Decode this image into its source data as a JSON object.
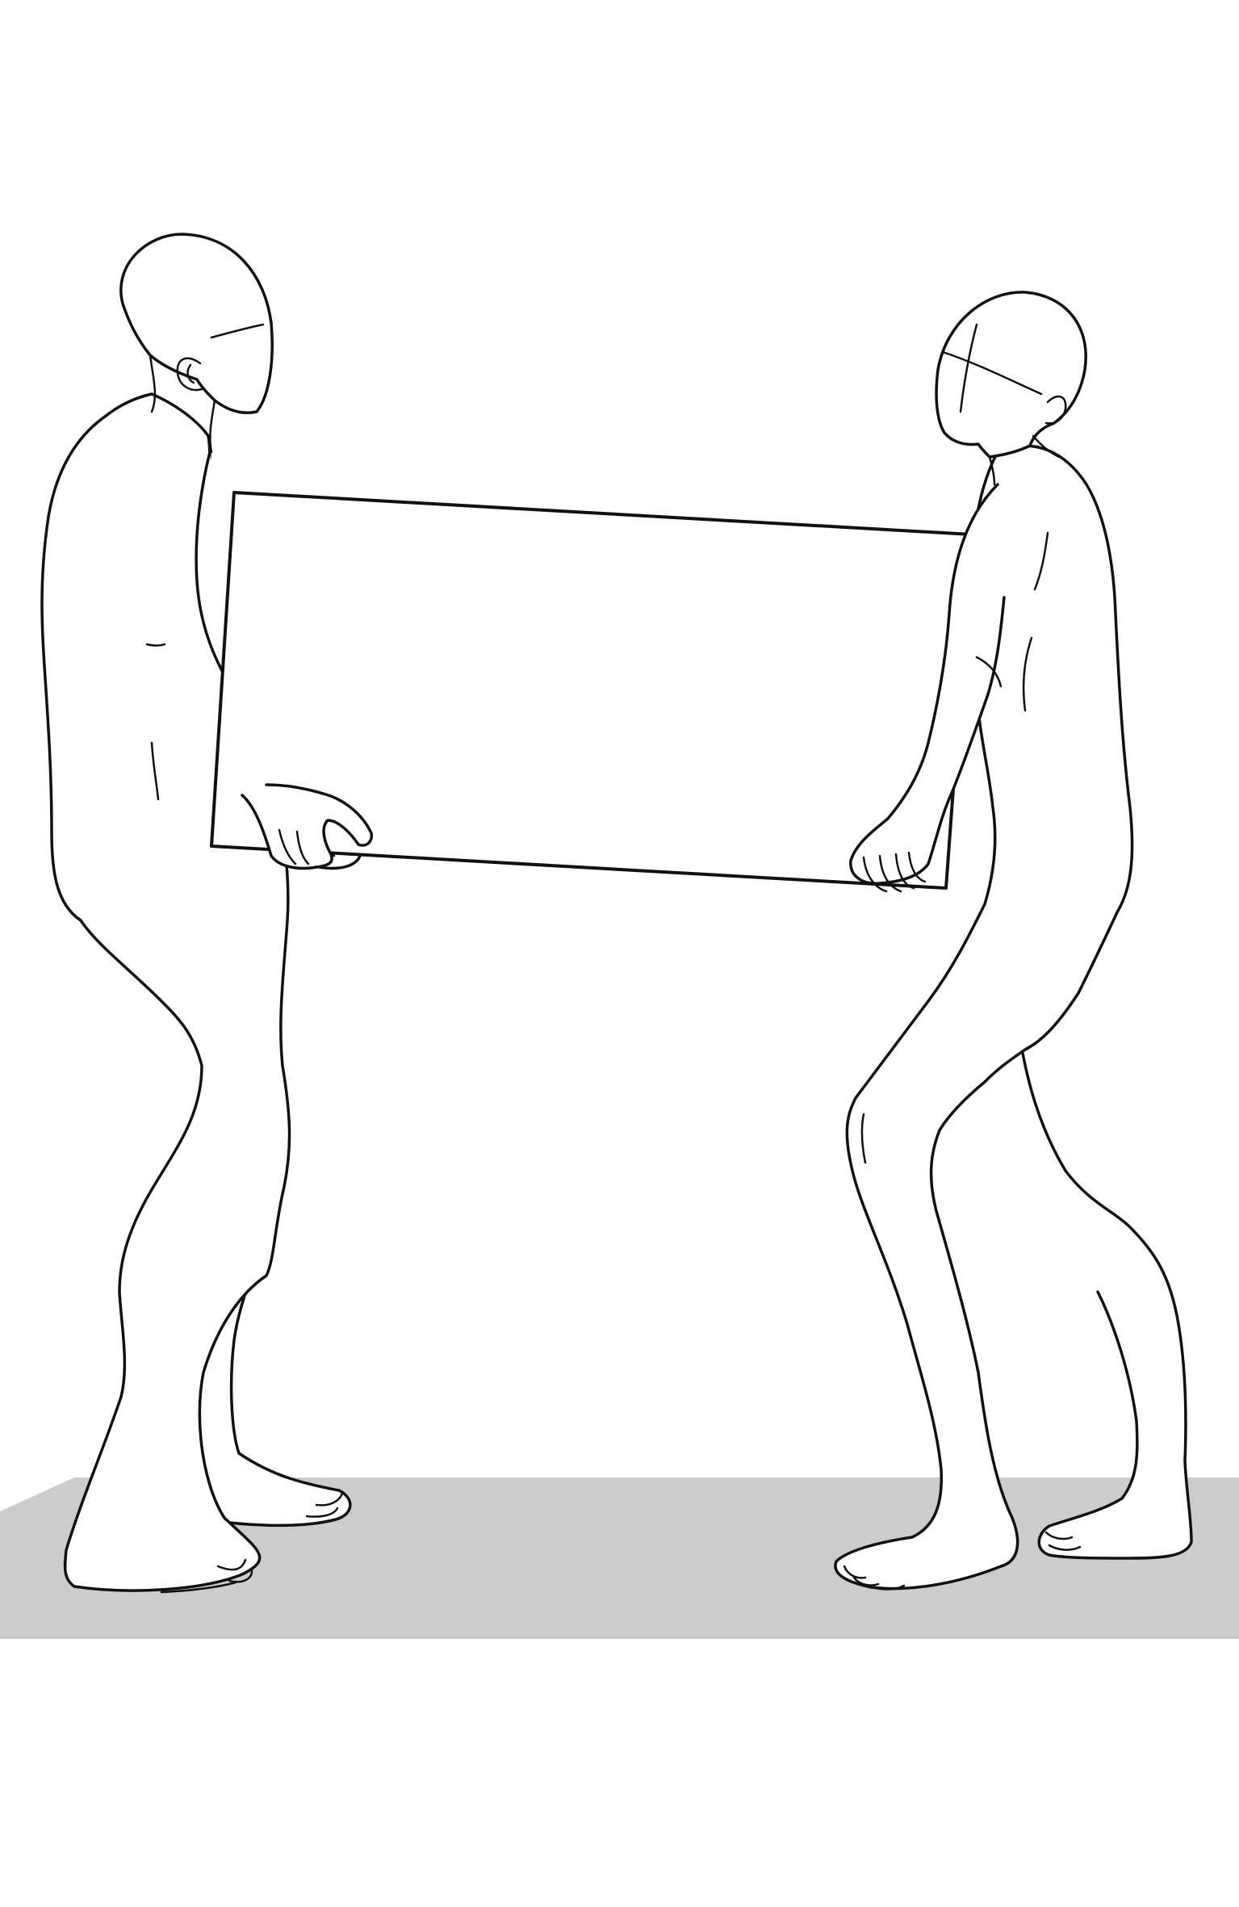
{
  "colors": {
    "background": "#ffffff",
    "floor": "#cccccc",
    "line": "#111111"
  }
}
